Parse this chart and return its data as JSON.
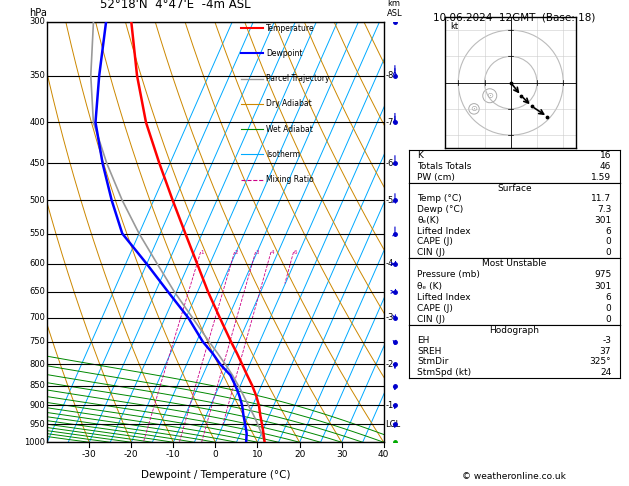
{
  "title_left": "52°18'N  4°47'E  -4m ASL",
  "title_right": "10.06.2024  12GMT  (Base: 18)",
  "xlabel": "Dewpoint / Temperature (°C)",
  "pmin": 300,
  "pmax": 1000,
  "tmin": -40,
  "tmax": 40,
  "skew_factor": 0.55,
  "isotherm_temps": [
    -40,
    -35,
    -30,
    -25,
    -20,
    -15,
    -10,
    -5,
    0,
    5,
    10,
    15,
    20,
    25,
    30,
    35,
    40
  ],
  "isotherm_color": "#00aaff",
  "dry_adiabat_color": "#cc8800",
  "wet_adiabat_color": "#008800",
  "mixing_ratio_color": "#cc0088",
  "temperature_color": "#ff0000",
  "dewpoint_color": "#0000ff",
  "parcel_color": "#999999",
  "pressure_labels": [
    300,
    350,
    400,
    450,
    500,
    550,
    600,
    650,
    700,
    750,
    800,
    850,
    900,
    950,
    1000
  ],
  "km_labels": {
    "350": 8,
    "400": 7,
    "450": 6,
    "500": 5,
    "600": 4,
    "700": 3,
    "800": 2,
    "900": 1
  },
  "temp_ticks": [
    -30,
    -20,
    -10,
    0,
    10,
    20,
    30,
    40
  ],
  "temp_profile_p": [
    1000,
    975,
    950,
    925,
    900,
    875,
    850,
    825,
    800,
    775,
    750,
    700,
    650,
    600,
    550,
    500,
    450,
    400,
    350,
    300
  ],
  "temp_profile_t": [
    11.7,
    10.5,
    9.2,
    7.8,
    6.5,
    4.8,
    2.8,
    0.5,
    -1.8,
    -4.2,
    -6.8,
    -12.0,
    -17.5,
    -23.0,
    -29.0,
    -35.5,
    -42.5,
    -50.0,
    -57.0,
    -64.0
  ],
  "dewp_profile_p": [
    1000,
    975,
    950,
    925,
    900,
    875,
    850,
    825,
    800,
    775,
    750,
    700,
    650,
    600,
    550,
    500,
    450,
    400,
    350,
    300
  ],
  "dewp_profile_t": [
    7.3,
    6.5,
    5.2,
    3.8,
    2.5,
    0.8,
    -1.2,
    -3.5,
    -7.0,
    -10.0,
    -13.5,
    -19.5,
    -27.0,
    -35.0,
    -44.0,
    -50.0,
    -56.0,
    -62.0,
    -66.0,
    -70.0
  ],
  "parcel_profile_p": [
    1000,
    975,
    950,
    925,
    900,
    875,
    850,
    825,
    800,
    775,
    750,
    700,
    650,
    600,
    550,
    500,
    450,
    400,
    350,
    300
  ],
  "parcel_profile_t": [
    11.7,
    10.0,
    8.2,
    6.2,
    4.0,
    1.8,
    -0.5,
    -3.0,
    -5.8,
    -8.8,
    -12.0,
    -18.5,
    -25.5,
    -32.5,
    -40.0,
    -47.5,
    -55.0,
    -62.5,
    -68.0,
    -73.0
  ],
  "mixing_ratios": [
    1,
    2,
    3,
    4,
    6,
    8,
    10,
    16,
    20,
    28
  ],
  "lcl_pressure": 950,
  "hodo_u": [
    0,
    4,
    8,
    14
  ],
  "hodo_v": [
    0,
    -5,
    -9,
    -13
  ],
  "hodo_gray_u": [
    -8,
    -14
  ],
  "hodo_gray_v": [
    -5,
    -10
  ],
  "K": 16,
  "TT": 46,
  "PW": 1.59,
  "sfc_temp": 11.7,
  "sfc_dewp": 7.3,
  "sfc_theta_e": 301,
  "sfc_li": 6,
  "sfc_cape": 0,
  "sfc_cin": 0,
  "mu_pres": 975,
  "mu_theta_e": 301,
  "mu_li": 6,
  "mu_cape": 0,
  "mu_cin": 0,
  "hodo_eh": -3,
  "hodo_sreh": 37,
  "hodo_stmdir": 325,
  "hodo_stmspd": 24,
  "wind_p": [
    300,
    350,
    400,
    450,
    500,
    550,
    600,
    650,
    700,
    750,
    800,
    850,
    900,
    950,
    1000
  ],
  "wind_speed": [
    20,
    18,
    16,
    14,
    12,
    10,
    8,
    8,
    7,
    6,
    5,
    4,
    4,
    4,
    5
  ],
  "wind_dir": [
    250,
    250,
    255,
    260,
    265,
    265,
    270,
    270,
    275,
    280,
    285,
    290,
    295,
    295,
    300
  ]
}
